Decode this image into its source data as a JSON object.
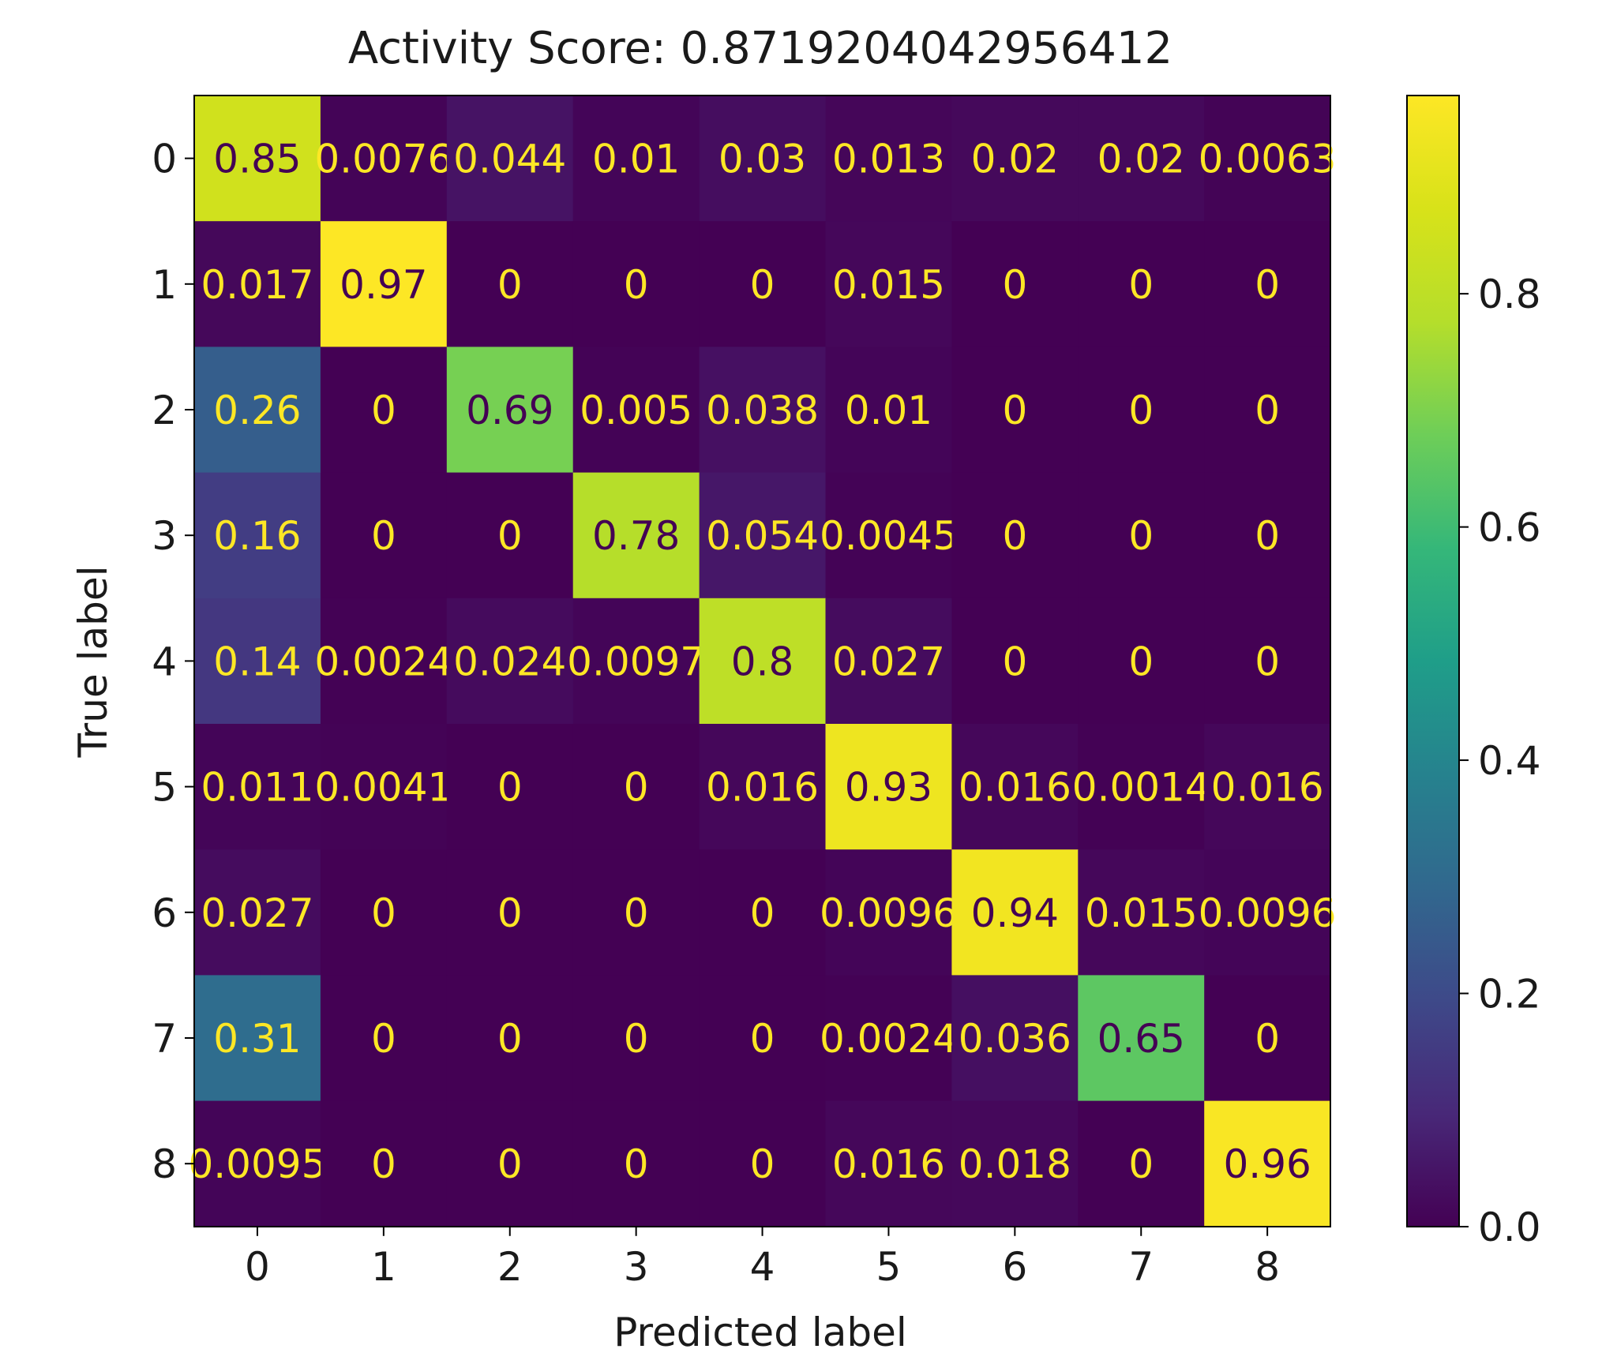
{
  "chart_data": {
    "type": "heatmap",
    "title": "Activity Score: 0.8719204042956412",
    "xlabel": "Predicted label",
    "ylabel": "True label",
    "x_ticks": [
      "0",
      "1",
      "2",
      "3",
      "4",
      "5",
      "6",
      "7",
      "8"
    ],
    "y_ticks": [
      "0",
      "1",
      "2",
      "3",
      "4",
      "5",
      "6",
      "7",
      "8"
    ],
    "cells": [
      [
        "0.85",
        "0.0076",
        "0.044",
        "0.01",
        "0.03",
        "0.013",
        "0.02",
        "0.02",
        "0.0063"
      ],
      [
        "0.017",
        "0.97",
        "0",
        "0",
        "0",
        "0.015",
        "0",
        "0",
        "0"
      ],
      [
        "0.26",
        "0",
        "0.69",
        "0.005",
        "0.038",
        "0.01",
        "0",
        "0",
        "0"
      ],
      [
        "0.16",
        "0",
        "0",
        "0.78",
        "0.054",
        "0.0045",
        "0",
        "0",
        "0"
      ],
      [
        "0.14",
        "0.0024",
        "0.024",
        "0.0097",
        "0.8",
        "0.027",
        "0",
        "0",
        "0"
      ],
      [
        "0.011",
        "0.0041",
        "0",
        "0",
        "0.016",
        "0.93",
        "0.016",
        "0.0014",
        "0.016"
      ],
      [
        "0.027",
        "0",
        "0",
        "0",
        "0",
        "0.0096",
        "0.94",
        "0.015",
        "0.0096"
      ],
      [
        "0.31",
        "0",
        "0",
        "0",
        "0",
        "0.0024",
        "0.036",
        "0.65",
        "0"
      ],
      [
        "0.0095",
        "0",
        "0",
        "0",
        "0",
        "0.016",
        "0.018",
        "0",
        "0.96"
      ]
    ],
    "colorbar": {
      "colormap": "viridis",
      "range": [
        0.0,
        0.97
      ],
      "ticks": [
        "0.0",
        "0.2",
        "0.4",
        "0.6",
        "0.8"
      ]
    },
    "colors": {
      "text_light": "#fde725",
      "text_dark": "#440154"
    }
  }
}
